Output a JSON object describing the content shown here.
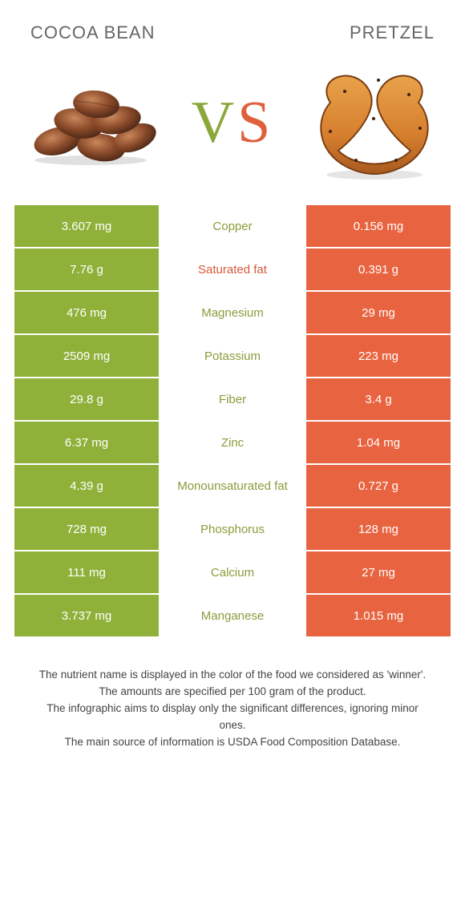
{
  "header": {
    "left_title": "COCOA BEAN",
    "right_title": "PRETZEL",
    "vs_v": "V",
    "vs_s": "S"
  },
  "colors": {
    "left_bg": "#8fb13a",
    "right_bg": "#e8633f",
    "mid_bg": "#ffffff",
    "left_text": "#8a9c3a",
    "right_text": "#d55a3a",
    "neutral_text": "#808080"
  },
  "rows": [
    {
      "label": "Copper",
      "left": "3.607 mg",
      "right": "0.156 mg",
      "winner": "left"
    },
    {
      "label": "Saturated fat",
      "left": "7.76 g",
      "right": "0.391 g",
      "winner": "right"
    },
    {
      "label": "Magnesium",
      "left": "476 mg",
      "right": "29 mg",
      "winner": "left"
    },
    {
      "label": "Potassium",
      "left": "2509 mg",
      "right": "223 mg",
      "winner": "left"
    },
    {
      "label": "Fiber",
      "left": "29.8 g",
      "right": "3.4 g",
      "winner": "left"
    },
    {
      "label": "Zinc",
      "left": "6.37 mg",
      "right": "1.04 mg",
      "winner": "left"
    },
    {
      "label": "Monounsaturated fat",
      "left": "4.39 g",
      "right": "0.727 g",
      "winner": "left"
    },
    {
      "label": "Phosphorus",
      "left": "728 mg",
      "right": "128 mg",
      "winner": "left"
    },
    {
      "label": "Calcium",
      "left": "111 mg",
      "right": "27 mg",
      "winner": "left"
    },
    {
      "label": "Manganese",
      "left": "3.737 mg",
      "right": "1.015 mg",
      "winner": "left"
    }
  ],
  "footer": {
    "line1": "The nutrient name is displayed in the color of the food we considered as 'winner'.",
    "line2": "The amounts are specified per 100 gram of the product.",
    "line3": "The infographic aims to display only the significant differences, ignoring minor ones.",
    "line4": "The main source of information is USDA Food Composition Database."
  }
}
